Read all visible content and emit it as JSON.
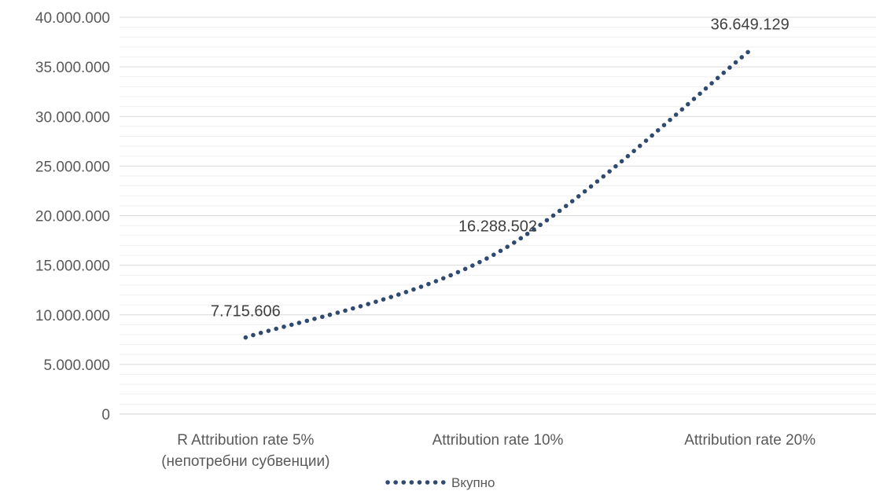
{
  "chart_data": {
    "type": "line",
    "line_style": "dotted",
    "categories": [
      [
        "R Attribution rate 5%",
        "(непотребни субвенции)"
      ],
      [
        "Attribution rate 10%"
      ],
      [
        "Attribution rate 20%"
      ]
    ],
    "series": [
      {
        "name": "Вкупно",
        "color": "#2e4a70",
        "values": [
          7715606,
          16288502,
          36649129
        ],
        "labels": [
          "7.715.606",
          "16.288.502",
          "36.649.129"
        ]
      }
    ],
    "ylim": [
      0,
      40000000
    ],
    "y_major_step": 5000000,
    "y_minor_step": 1000000,
    "y_tick_labels": [
      "0",
      "5.000.000",
      "10.000.000",
      "15.000.000",
      "20.000.000",
      "25.000.000",
      "30.000.000",
      "35.000.000",
      "40.000.000"
    ],
    "grid": true,
    "legend_position": "bottom",
    "title": "",
    "xlabel": "",
    "ylabel": ""
  }
}
